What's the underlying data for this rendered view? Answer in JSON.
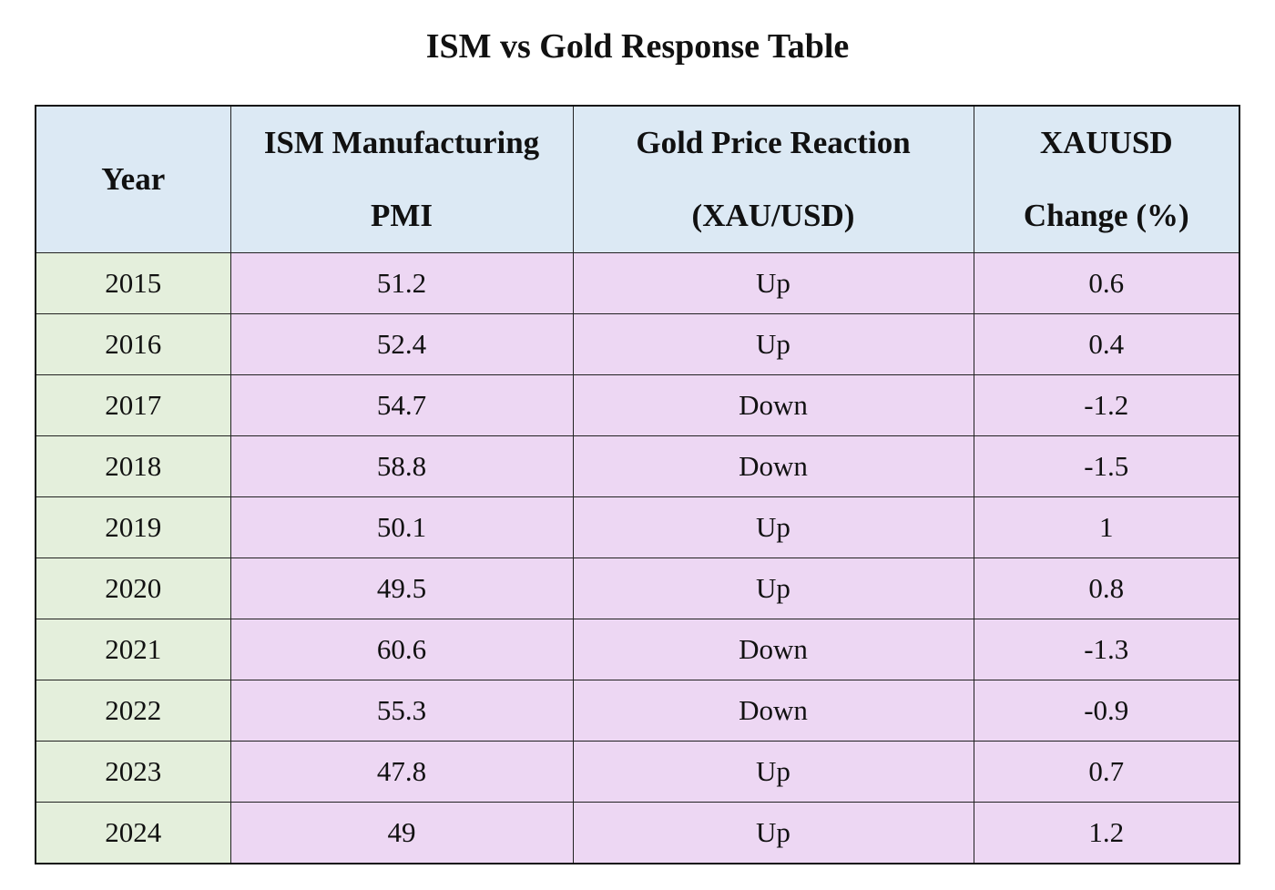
{
  "chart_data": {
    "type": "table",
    "title": "ISM vs Gold Response Table",
    "columns": [
      {
        "key": "year",
        "label_lines": [
          "Year"
        ]
      },
      {
        "key": "pmi",
        "label_lines": [
          "ISM Manufacturing",
          "PMI"
        ]
      },
      {
        "key": "reaction",
        "label_lines": [
          "Gold Price Reaction",
          "(XAU/USD)"
        ]
      },
      {
        "key": "change",
        "label_lines": [
          "XAUUSD",
          "Change (%)"
        ]
      }
    ],
    "rows": [
      {
        "year": "2015",
        "pmi": "51.2",
        "reaction": "Up",
        "change": "0.6"
      },
      {
        "year": "2016",
        "pmi": "52.4",
        "reaction": "Up",
        "change": "0.4"
      },
      {
        "year": "2017",
        "pmi": "54.7",
        "reaction": "Down",
        "change": "-1.2"
      },
      {
        "year": "2018",
        "pmi": "58.8",
        "reaction": "Down",
        "change": "-1.5"
      },
      {
        "year": "2019",
        "pmi": "50.1",
        "reaction": "Up",
        "change": "1"
      },
      {
        "year": "2020",
        "pmi": "49.5",
        "reaction": "Up",
        "change": "0.8"
      },
      {
        "year": "2021",
        "pmi": "60.6",
        "reaction": "Down",
        "change": "-1.3"
      },
      {
        "year": "2022",
        "pmi": "55.3",
        "reaction": "Down",
        "change": "-0.9"
      },
      {
        "year": "2023",
        "pmi": "47.8",
        "reaction": "Up",
        "change": "0.7"
      },
      {
        "year": "2024",
        "pmi": "49",
        "reaction": "Up",
        "change": "1.2"
      }
    ]
  },
  "colors": {
    "header_bg": "#dce9f4",
    "year_col_bg": "#e4efdc",
    "data_bg": "#edd7f3",
    "border": "#222222"
  }
}
